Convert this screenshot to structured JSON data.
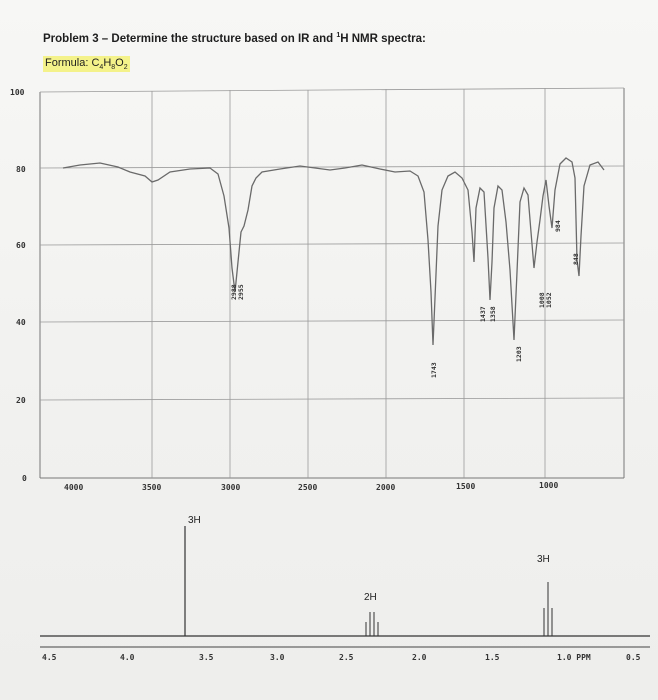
{
  "problem": {
    "title_prefix": "Problem 3 – Determine the structure based on IR and ",
    "title_sup": "1",
    "title_suffix": "H NMR spectra:",
    "formula_prefix": "Formula: C",
    "formula_c": "4",
    "formula_h": "H",
    "formula_hn": "8",
    "formula_o": "O",
    "formula_on": "2"
  },
  "ir": {
    "y_ticks": [
      "100",
      "80",
      "60",
      "40",
      "20",
      "0"
    ],
    "x_ticks": [
      "4000",
      "3500",
      "3000",
      "2500",
      "2000",
      "1500",
      "1000"
    ],
    "peak_labels": [
      "2988",
      "2955",
      "1743",
      "1437",
      "1358",
      "1203",
      "1008",
      "1052",
      "984",
      "848"
    ]
  },
  "nmr": {
    "x_ticks": [
      "4.5",
      "4.0",
      "3.5",
      "3.0",
      "2.5",
      "2.0",
      "1.5",
      "1.0 PPM",
      "0.5"
    ],
    "integrations": [
      "3H",
      "2H",
      "3H"
    ]
  }
}
